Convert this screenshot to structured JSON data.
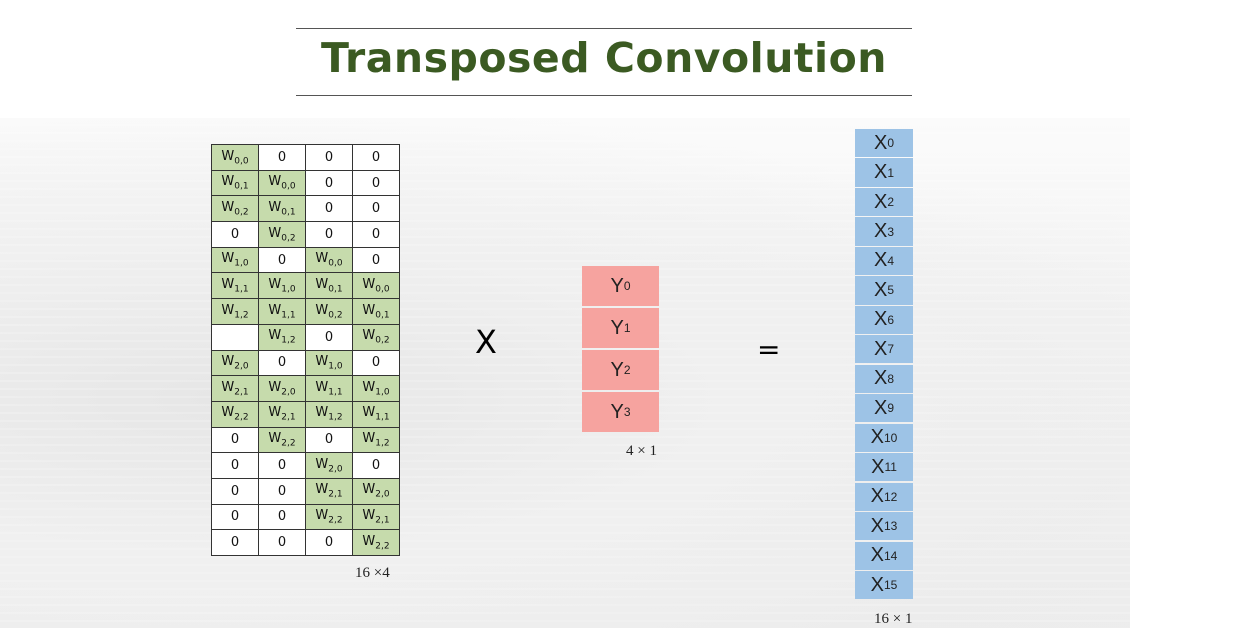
{
  "title": "Transposed Convolution",
  "weight_matrix": {
    "rows": [
      [
        {
          "sym": "W",
          "sub": "0,0"
        },
        {
          "text": "0"
        },
        {
          "text": "0"
        },
        {
          "text": "0"
        }
      ],
      [
        {
          "sym": "W",
          "sub": "0,1"
        },
        {
          "sym": "W",
          "sub": "0,0"
        },
        {
          "text": "0"
        },
        {
          "text": "0"
        }
      ],
      [
        {
          "sym": "W",
          "sub": "0,2"
        },
        {
          "sym": "W",
          "sub": "0,1"
        },
        {
          "text": "0"
        },
        {
          "text": "0"
        }
      ],
      [
        {
          "text": "0"
        },
        {
          "sym": "W",
          "sub": "0,2"
        },
        {
          "text": "0"
        },
        {
          "text": "0"
        }
      ],
      [
        {
          "sym": "W",
          "sub": "1,0"
        },
        {
          "text": "0"
        },
        {
          "sym": "W",
          "sub": "0,0"
        },
        {
          "text": "0"
        }
      ],
      [
        {
          "sym": "W",
          "sub": "1,1"
        },
        {
          "sym": "W",
          "sub": "1,0"
        },
        {
          "sym": "W",
          "sub": "0,1"
        },
        {
          "sym": "W",
          "sub": "0,0"
        }
      ],
      [
        {
          "sym": "W",
          "sub": "1,2"
        },
        {
          "sym": "W",
          "sub": "1,1"
        },
        {
          "sym": "W",
          "sub": "0,2"
        },
        {
          "sym": "W",
          "sub": "0,1"
        }
      ],
      [
        {
          "text": ""
        },
        {
          "sym": "W",
          "sub": "1,2"
        },
        {
          "text": "0"
        },
        {
          "sym": "W",
          "sub": "0,2"
        }
      ],
      [
        {
          "sym": "W",
          "sub": "2,0"
        },
        {
          "text": "0"
        },
        {
          "sym": "W",
          "sub": "1,0"
        },
        {
          "text": "0"
        }
      ],
      [
        {
          "sym": "W",
          "sub": "2,1"
        },
        {
          "sym": "W",
          "sub": "2,0"
        },
        {
          "sym": "W",
          "sub": "1,1"
        },
        {
          "sym": "W",
          "sub": "1,0"
        }
      ],
      [
        {
          "sym": "W",
          "sub": "2,2"
        },
        {
          "sym": "W",
          "sub": "2,1"
        },
        {
          "sym": "W",
          "sub": "1,2"
        },
        {
          "sym": "W",
          "sub": "1,1"
        }
      ],
      [
        {
          "text": "0"
        },
        {
          "sym": "W",
          "sub": "2,2"
        },
        {
          "text": "0"
        },
        {
          "sym": "W",
          "sub": "1,2"
        }
      ],
      [
        {
          "text": "0"
        },
        {
          "text": "0"
        },
        {
          "sym": "W",
          "sub": "2,0"
        },
        {
          "text": "0"
        }
      ],
      [
        {
          "text": "0"
        },
        {
          "text": "0"
        },
        {
          "sym": "W",
          "sub": "2,1"
        },
        {
          "sym": "W",
          "sub": "2,0"
        }
      ],
      [
        {
          "text": "0"
        },
        {
          "text": "0"
        },
        {
          "sym": "W",
          "sub": "2,2"
        },
        {
          "sym": "W",
          "sub": "2,1"
        }
      ],
      [
        {
          "text": "0"
        },
        {
          "text": "0"
        },
        {
          "text": "0"
        },
        {
          "sym": "W",
          "sub": "2,2"
        }
      ]
    ],
    "dim_label": "16 ×4",
    "nonzero_color": "#c6dbac"
  },
  "operators": {
    "multiply": "X",
    "equals": "="
  },
  "y_vector": {
    "entries": [
      {
        "sym": "Y",
        "sub": "0"
      },
      {
        "sym": "Y",
        "sub": "1"
      },
      {
        "sym": "Y",
        "sub": "2"
      },
      {
        "sym": "Y",
        "sub": "3"
      }
    ],
    "dim_label": "4 × 1",
    "color": "#f6a39f"
  },
  "x_vector": {
    "entries": [
      {
        "sym": "X",
        "sub": "0"
      },
      {
        "sym": "X",
        "sub": "1"
      },
      {
        "sym": "X",
        "sub": "2"
      },
      {
        "sym": "X",
        "sub": "3"
      },
      {
        "sym": "X",
        "sub": "4"
      },
      {
        "sym": "X",
        "sub": "5"
      },
      {
        "sym": "X",
        "sub": "6"
      },
      {
        "sym": "X",
        "sub": "7"
      },
      {
        "sym": "X",
        "sub": "8"
      },
      {
        "sym": "X",
        "sub": "9"
      },
      {
        "sym": "X",
        "sub": "10"
      },
      {
        "sym": "X",
        "sub": "11"
      },
      {
        "sym": "X",
        "sub": "12"
      },
      {
        "sym": "X",
        "sub": "13"
      },
      {
        "sym": "X",
        "sub": "14"
      },
      {
        "sym": "X",
        "sub": "15"
      }
    ],
    "dim_label": "16 × 1",
    "color": "#9dc3e6"
  }
}
